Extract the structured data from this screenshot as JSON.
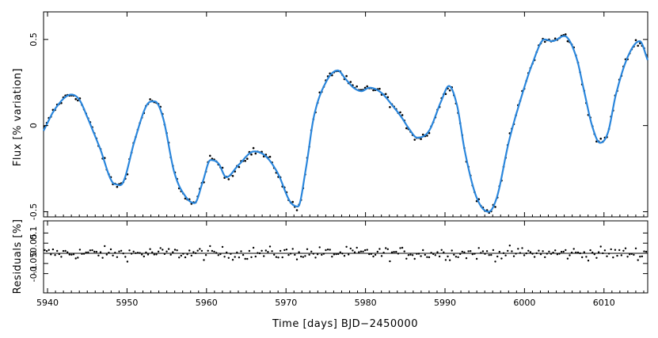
{
  "chart_data": [
    {
      "type": "line",
      "panel": "top",
      "ylabel": "Flux [% variation]",
      "xlim": [
        5939.5,
        6015.5
      ],
      "ylim": [
        -0.53,
        0.66
      ],
      "yticks": [
        -0.5,
        0,
        0.5
      ],
      "ytick_labels": [
        "-0.5",
        "0",
        "0.5"
      ],
      "xticks": [
        5940,
        5950,
        5960,
        5970,
        5980,
        5990,
        6000,
        6010
      ],
      "grid": false,
      "line_color": "#2a86dc",
      "point_color": "#000000",
      "series": [
        {
          "kind": "line",
          "x": [
            5939.5,
            5941,
            5943,
            5944,
            5945,
            5946.5,
            5948.5,
            5949.5,
            5951,
            5952.5,
            5953.5,
            5954.5,
            5956,
            5957.5,
            5958.5,
            5959.5,
            5960.5,
            5961.5,
            5962.5,
            5964,
            5966,
            5967.5,
            5969,
            5970.5,
            5971.5,
            5972.5,
            5973.5,
            5975,
            5976.5,
            5977.5,
            5978.5,
            5979.5,
            5980.5,
            5982,
            5983.5,
            5984.5,
            5985.5,
            5986.5,
            5988,
            5989.5,
            5990.5,
            5991.5,
            5992.5,
            5994,
            5995.5,
            5996.5,
            5998,
            5999.5,
            6001,
            6002.5,
            6003.5,
            6005,
            6006.5,
            6007.5,
            6008.5,
            6009.5,
            6010.5,
            6011.5,
            6013,
            6014.5,
            6015.5
          ],
          "y": [
            -0.03,
            0.1,
            0.18,
            0.15,
            0.05,
            -0.12,
            -0.34,
            -0.33,
            -0.08,
            0.12,
            0.14,
            0.05,
            -0.28,
            -0.42,
            -0.45,
            -0.33,
            -0.2,
            -0.22,
            -0.3,
            -0.23,
            -0.15,
            -0.18,
            -0.28,
            -0.44,
            -0.47,
            -0.25,
            0.05,
            0.25,
            0.32,
            0.27,
            0.22,
            0.2,
            0.22,
            0.19,
            0.11,
            0.05,
            -0.02,
            -0.07,
            -0.03,
            0.14,
            0.23,
            0.12,
            -0.15,
            -0.42,
            -0.5,
            -0.42,
            -0.1,
            0.15,
            0.36,
            0.5,
            0.49,
            0.52,
            0.4,
            0.2,
            0.0,
            -0.1,
            -0.04,
            0.18,
            0.4,
            0.49,
            0.38
          ]
        }
      ]
    },
    {
      "type": "scatter",
      "panel": "bottom",
      "xlabel": "Time [days] BJD−2450000",
      "ylabel": "Residuals [%]",
      "xlim": [
        5939.5,
        6015.5
      ],
      "ylim": [
        -0.195,
        0.16
      ],
      "yticks": [
        -0.1,
        -0.05,
        0,
        0.05,
        0.1
      ],
      "ytick_labels": [
        "-0.1",
        "-0.05",
        "0",
        "0.05",
        "0.1"
      ],
      "xticks": [
        5940,
        5950,
        5960,
        5970,
        5980,
        5990,
        6000,
        6010
      ],
      "xtick_labels": [
        "5940",
        "5950",
        "5960",
        "5970",
        "5980",
        "5990",
        "6000",
        "6010"
      ],
      "grid": false,
      "zero_line": true,
      "point_color": "#000000"
    }
  ]
}
